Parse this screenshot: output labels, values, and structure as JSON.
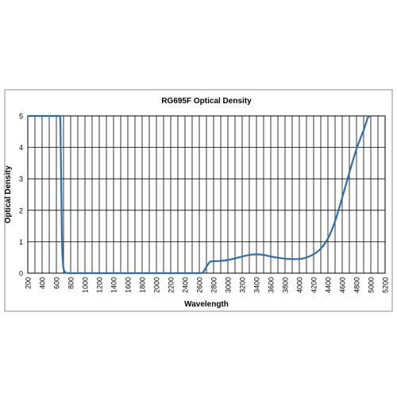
{
  "chart_data": {
    "type": "line",
    "title": "RG695F Optical Density",
    "xlabel": "Wavelength",
    "ylabel": "Optical Density",
    "xlim": [
      200,
      5200
    ],
    "ylim": [
      0,
      5
    ],
    "x_tick_step": 100,
    "x_label_step": 200,
    "y_ticks": [
      0,
      1,
      2,
      3,
      4,
      5
    ],
    "grid": true,
    "legend": "none",
    "line_color": "#2e6dad",
    "series": [
      {
        "x": [
          200,
          400,
          600,
          650,
          660,
          670,
          680,
          700,
          750,
          800,
          1000,
          1500,
          2000,
          2500,
          2600,
          2650,
          2700,
          2750,
          2800,
          2900,
          3000,
          3100,
          3200,
          3300,
          3400,
          3500,
          3600,
          3700,
          3800,
          3900,
          4000,
          4100,
          4200,
          4300,
          4400,
          4500,
          4600,
          4700,
          4800,
          4900,
          4960,
          5000
        ],
        "y": [
          5,
          5,
          5,
          5,
          4.2,
          2.5,
          0.9,
          0.15,
          0,
          0,
          0,
          0,
          0,
          0,
          0,
          0.02,
          0.2,
          0.36,
          0.38,
          0.39,
          0.42,
          0.47,
          0.53,
          0.58,
          0.6,
          0.58,
          0.53,
          0.49,
          0.46,
          0.45,
          0.45,
          0.5,
          0.6,
          0.78,
          1.1,
          1.65,
          2.4,
          3.2,
          3.95,
          4.55,
          4.95,
          5
        ]
      }
    ]
  }
}
